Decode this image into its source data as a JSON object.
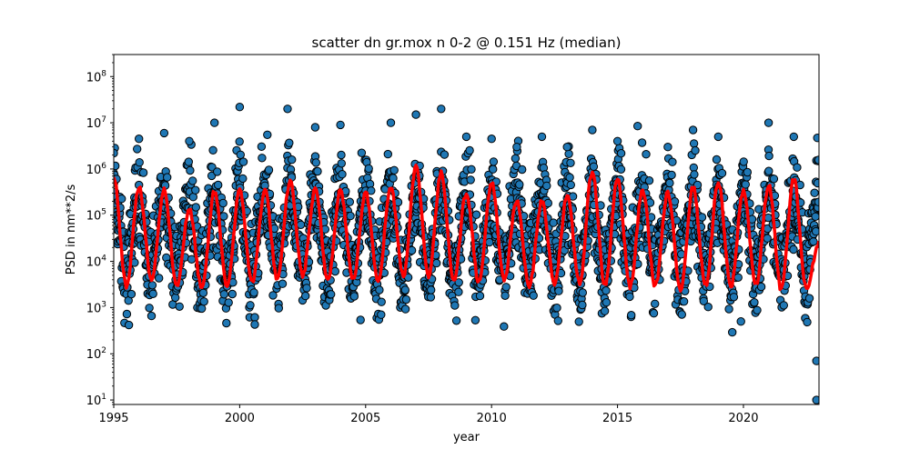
{
  "chart_data": {
    "type": "scatter",
    "title": "scatter dn gr.mox n 0-2 @ 0.151 Hz (median)",
    "xlabel": "year",
    "ylabel": "PSD in nm**2/s",
    "xlim": [
      1995,
      2023
    ],
    "ylim": [
      8,
      300000000
    ],
    "yscale": "log",
    "grid": false,
    "x_ticks": [
      1995,
      2000,
      2005,
      2010,
      2015,
      2020
    ],
    "x_tick_labels": [
      "1995",
      "2000",
      "2005",
      "2010",
      "2015",
      "2020"
    ],
    "y_ticks": [
      10,
      100,
      1000,
      10000,
      100000,
      1000000,
      10000000,
      100000000
    ],
    "y_tick_labels": [
      {
        "base": "10",
        "exp": "1"
      },
      {
        "base": "10",
        "exp": "2"
      },
      {
        "base": "10",
        "exp": "3"
      },
      {
        "base": "10",
        "exp": "4"
      },
      {
        "base": "10",
        "exp": "5"
      },
      {
        "base": "10",
        "exp": "6"
      },
      {
        "base": "10",
        "exp": "7"
      },
      {
        "base": "10",
        "exp": "8"
      }
    ],
    "series": [
      {
        "kind": "scatter",
        "color": "#1f77b4",
        "edge_color": "#000000",
        "description": "daily PSD values, seasonal cycle",
        "annual_cycle": {
          "winter_level": 300000,
          "summer_level": 5000,
          "spread_decades": 1.5
        },
        "extreme_points": [
          {
            "x": 1995.0,
            "y": 2200000
          },
          {
            "x": 1995.6,
            "y": 420
          },
          {
            "x": 1996.0,
            "y": 4500000
          },
          {
            "x": 1997.0,
            "y": 6000000
          },
          {
            "x": 1998.0,
            "y": 4000000
          },
          {
            "x": 1999.0,
            "y": 10000000
          },
          {
            "x": 2000.0,
            "y": 22000000
          },
          {
            "x": 2000.6,
            "y": 430
          },
          {
            "x": 2001.1,
            "y": 5500000
          },
          {
            "x": 2001.9,
            "y": 20000000
          },
          {
            "x": 2003.0,
            "y": 8000000
          },
          {
            "x": 2004.0,
            "y": 9000000
          },
          {
            "x": 2004.8,
            "y": 540
          },
          {
            "x": 2006.0,
            "y": 10000000
          },
          {
            "x": 2007.0,
            "y": 15000000
          },
          {
            "x": 2008.0,
            "y": 20000000
          },
          {
            "x": 2009.0,
            "y": 5000000
          },
          {
            "x": 2010.0,
            "y": 4500000
          },
          {
            "x": 2011.0,
            "y": 3000000
          },
          {
            "x": 2012.0,
            "y": 5000000
          },
          {
            "x": 2013.0,
            "y": 3000000
          },
          {
            "x": 2014.0,
            "y": 7000000
          },
          {
            "x": 2015.0,
            "y": 4000000
          },
          {
            "x": 2015.8,
            "y": 8500000
          },
          {
            "x": 2017.0,
            "y": 3000000
          },
          {
            "x": 2018.0,
            "y": 7000000
          },
          {
            "x": 2019.0,
            "y": 5000000
          },
          {
            "x": 2019.9,
            "y": 500
          },
          {
            "x": 2021.0,
            "y": 10000000
          },
          {
            "x": 2022.0,
            "y": 5000000
          },
          {
            "x": 2022.9,
            "y": 70
          },
          {
            "x": 2022.9,
            "y": 10
          }
        ]
      },
      {
        "kind": "line",
        "color": "#ff0000",
        "description": "running median",
        "peaks": [
          {
            "x": 1995.0,
            "y": 700000
          },
          {
            "x": 1996.0,
            "y": 400000
          },
          {
            "x": 1997.0,
            "y": 350000
          },
          {
            "x": 1998.0,
            "y": 130000
          },
          {
            "x": 1999.0,
            "y": 320000
          },
          {
            "x": 2000.0,
            "y": 330000
          },
          {
            "x": 2001.0,
            "y": 350000
          },
          {
            "x": 2002.0,
            "y": 550000
          },
          {
            "x": 2003.0,
            "y": 350000
          },
          {
            "x": 2004.0,
            "y": 350000
          },
          {
            "x": 2005.0,
            "y": 300000
          },
          {
            "x": 2006.0,
            "y": 400000
          },
          {
            "x": 2007.0,
            "y": 1100000
          },
          {
            "x": 2008.0,
            "y": 800000
          },
          {
            "x": 2009.0,
            "y": 300000
          },
          {
            "x": 2010.0,
            "y": 500000
          },
          {
            "x": 2011.0,
            "y": 200000
          },
          {
            "x": 2012.0,
            "y": 200000
          },
          {
            "x": 2013.0,
            "y": 250000
          },
          {
            "x": 2014.0,
            "y": 900000
          },
          {
            "x": 2015.0,
            "y": 600000
          },
          {
            "x": 2016.0,
            "y": 350000
          },
          {
            "x": 2017.0,
            "y": 300000
          },
          {
            "x": 2018.0,
            "y": 400000
          },
          {
            "x": 2019.0,
            "y": 500000
          },
          {
            "x": 2020.0,
            "y": 350000
          },
          {
            "x": 2021.0,
            "y": 450000
          },
          {
            "x": 2022.0,
            "y": 600000
          }
        ],
        "troughs": [
          {
            "x": 1995.5,
            "y": 3000
          },
          {
            "x": 1996.5,
            "y": 4000
          },
          {
            "x": 1997.5,
            "y": 3000
          },
          {
            "x": 1998.5,
            "y": 2500
          },
          {
            "x": 1999.5,
            "y": 3000
          },
          {
            "x": 2000.5,
            "y": 3500
          },
          {
            "x": 2001.5,
            "y": 4000
          },
          {
            "x": 2002.5,
            "y": 5000
          },
          {
            "x": 2003.5,
            "y": 4000
          },
          {
            "x": 2004.5,
            "y": 4000
          },
          {
            "x": 2005.5,
            "y": 4000
          },
          {
            "x": 2006.5,
            "y": 5000
          },
          {
            "x": 2007.5,
            "y": 5000
          },
          {
            "x": 2008.5,
            "y": 4000
          },
          {
            "x": 2009.5,
            "y": 3500
          },
          {
            "x": 2010.5,
            "y": 4000
          },
          {
            "x": 2011.5,
            "y": 3000
          },
          {
            "x": 2012.5,
            "y": 3500
          },
          {
            "x": 2013.5,
            "y": 3500
          },
          {
            "x": 2014.5,
            "y": 3000
          },
          {
            "x": 2015.5,
            "y": 2800
          },
          {
            "x": 2016.5,
            "y": 3000
          },
          {
            "x": 2017.5,
            "y": 2500
          },
          {
            "x": 2018.5,
            "y": 3000
          },
          {
            "x": 2019.5,
            "y": 2800
          },
          {
            "x": 2020.5,
            "y": 3000
          },
          {
            "x": 2021.5,
            "y": 2500
          },
          {
            "x": 2022.5,
            "y": 2500
          }
        ],
        "end_point": {
          "x": 2023.0,
          "y": 25000
        }
      }
    ]
  }
}
